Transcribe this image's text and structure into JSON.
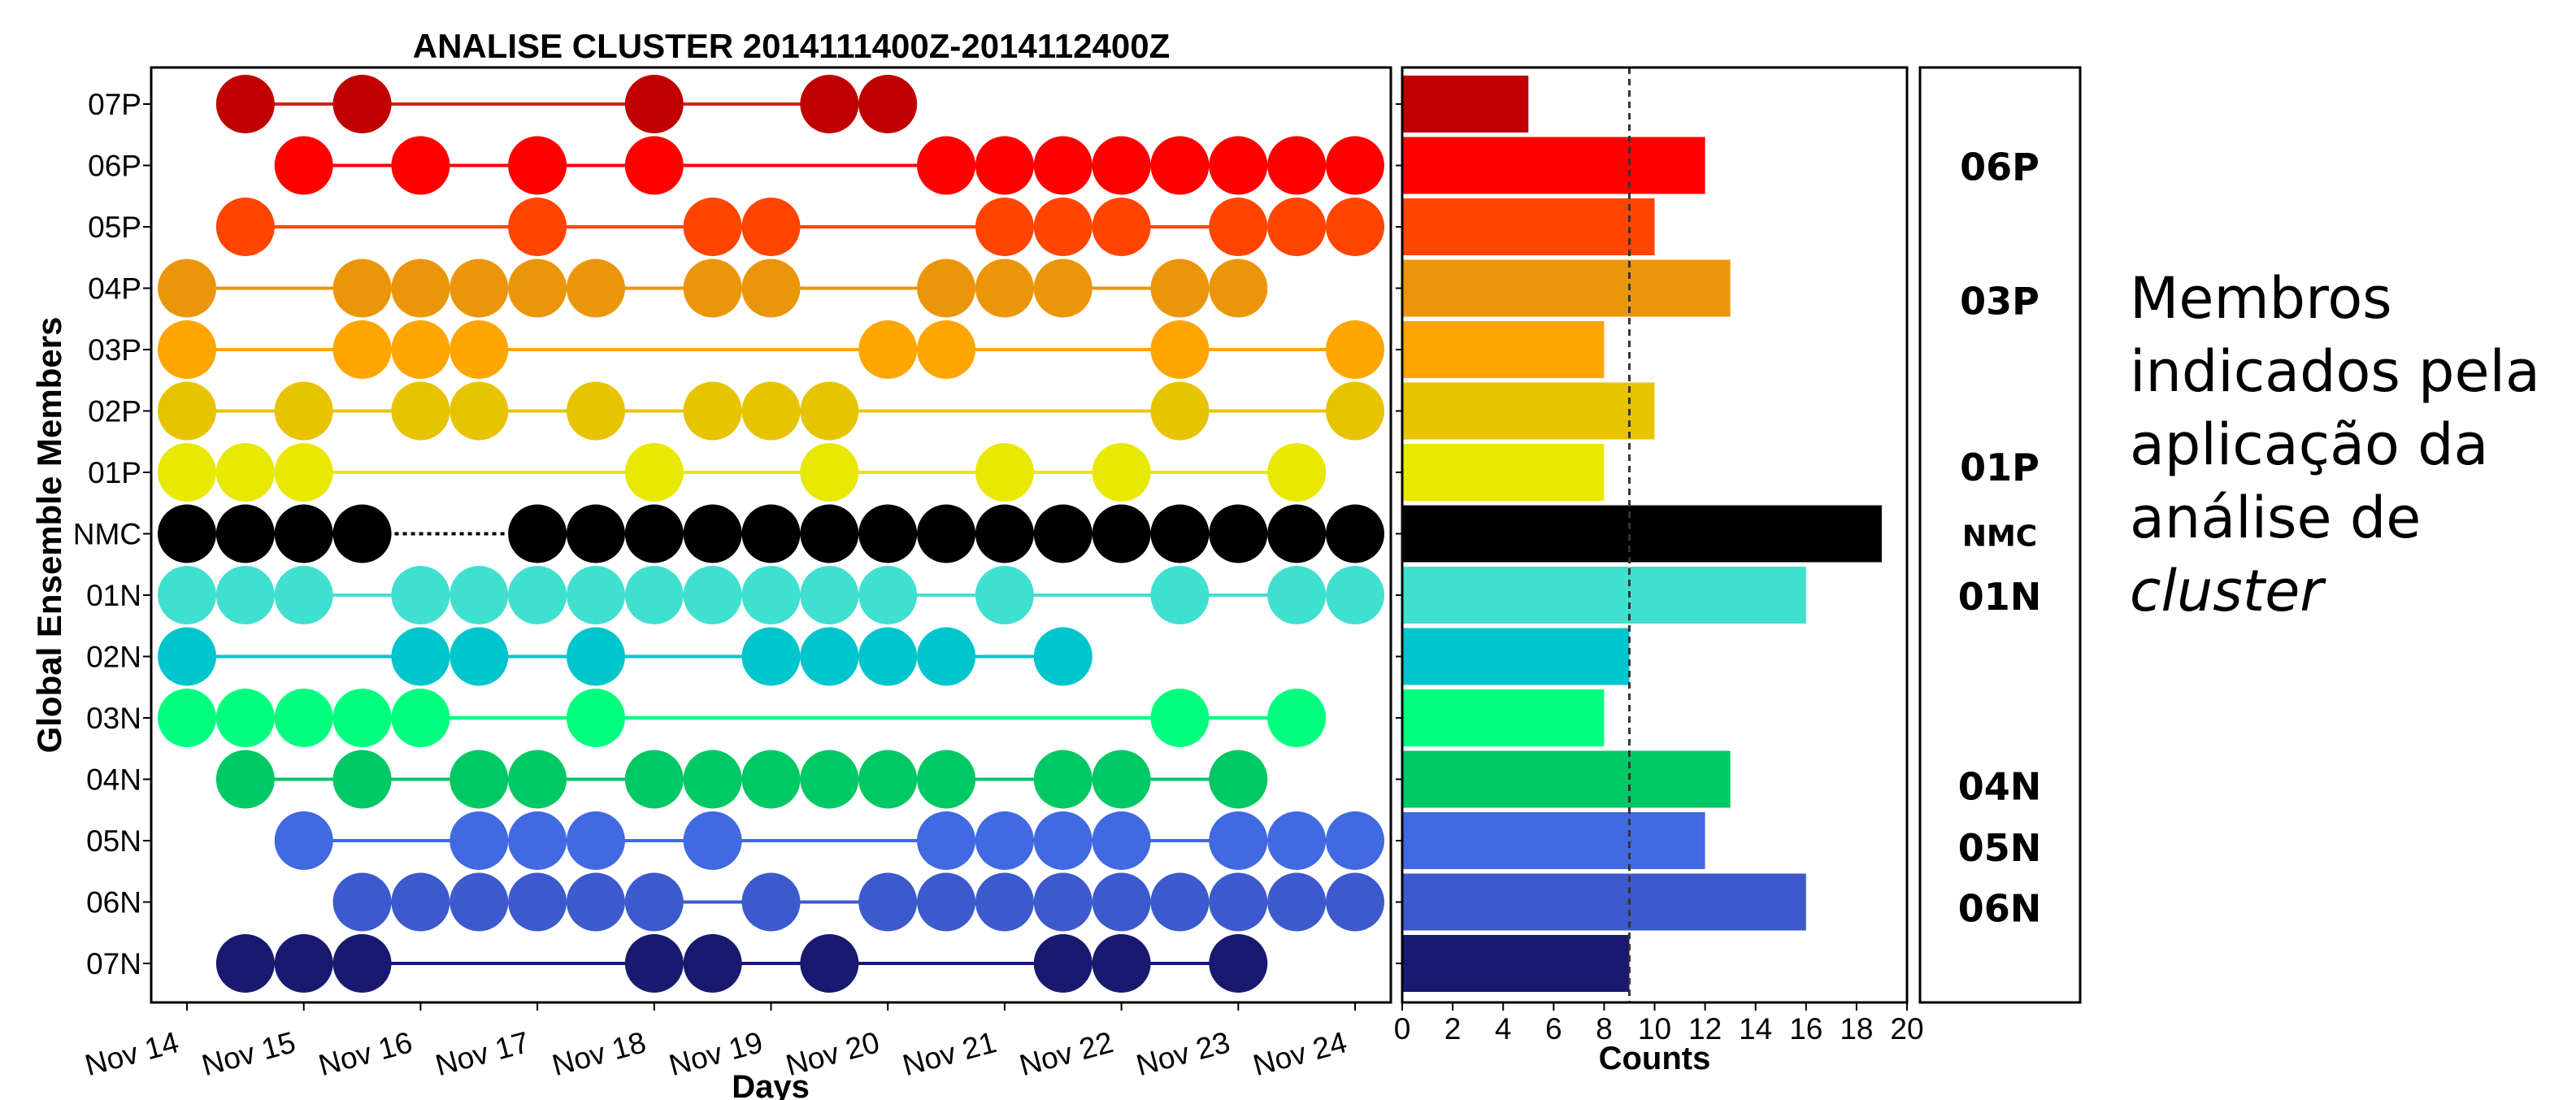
{
  "chart_data": [
    {
      "type": "scatter",
      "title": "ANALISE CLUSTER 2014111400Z-2014112400Z",
      "xlabel": "Days",
      "ylabel": "Global Ensemble Members",
      "x_ticks": [
        "Nov 14",
        "Nov 15",
        "Nov 16",
        "Nov 17",
        "Nov 18",
        "Nov 19",
        "Nov 20",
        "Nov 21",
        "Nov 22",
        "Nov 23",
        "Nov 24"
      ],
      "time_step_days": 0.5,
      "members": [
        {
          "name": "07P",
          "color": "#c00000",
          "line": "#d22020",
          "dots": [
            1,
            3,
            8,
            11,
            12
          ]
        },
        {
          "name": "06P",
          "color": "#ff0000",
          "line": "#ff0000",
          "dots": [
            2,
            4,
            6,
            8,
            13,
            14,
            15,
            16,
            17,
            18,
            19,
            20
          ]
        },
        {
          "name": "05P",
          "color": "#ff4500",
          "line": "#ff4500",
          "dots": [
            1,
            6,
            9,
            10,
            14,
            15,
            16,
            18,
            19,
            20
          ]
        },
        {
          "name": "04P",
          "color": "#eb960a",
          "line": "#eb960a",
          "dots": [
            0,
            3,
            4,
            5,
            6,
            7,
            9,
            10,
            13,
            14,
            15,
            17,
            18
          ]
        },
        {
          "name": "03P",
          "color": "#ffa500",
          "line": "#ffa500",
          "dots": [
            0,
            3,
            4,
            5,
            12,
            13,
            17,
            20
          ]
        },
        {
          "name": "02P",
          "color": "#e8c400",
          "line": "#e8c400",
          "dots": [
            0,
            2,
            4,
            5,
            7,
            9,
            10,
            11,
            17,
            20
          ]
        },
        {
          "name": "01P",
          "color": "#e8e800",
          "line": "#e8e800",
          "dots": [
            0,
            1,
            2,
            8,
            11,
            14,
            16,
            19
          ]
        },
        {
          "name": "NMC",
          "color": "#000000",
          "line": "#000000",
          "dots": [
            0,
            1,
            2,
            3,
            6,
            7,
            8,
            9,
            10,
            11,
            12,
            13,
            14,
            15,
            16,
            17,
            18,
            19,
            20
          ],
          "dotted_gap": [
            3,
            6
          ]
        },
        {
          "name": "01N",
          "color": "#40e0d0",
          "line": "#40e0d0",
          "dots": [
            0,
            1,
            2,
            4,
            5,
            6,
            7,
            8,
            9,
            10,
            11,
            12,
            14,
            17,
            19,
            20
          ]
        },
        {
          "name": "02N",
          "color": "#00c5cd",
          "line": "#00c5cd",
          "dots": [
            0,
            4,
            5,
            7,
            10,
            11,
            12,
            13,
            15
          ]
        },
        {
          "name": "03N",
          "color": "#00ff7f",
          "line": "#00ff7f",
          "dots": [
            0,
            1,
            2,
            3,
            4,
            7,
            17,
            19
          ]
        },
        {
          "name": "04N",
          "color": "#00c864",
          "line": "#00c864",
          "dots": [
            1,
            3,
            5,
            6,
            8,
            9,
            10,
            11,
            12,
            13,
            15,
            16,
            18
          ]
        },
        {
          "name": "05N",
          "color": "#4169e1",
          "line": "#4169e1",
          "dots": [
            2,
            5,
            6,
            7,
            9,
            13,
            14,
            15,
            16,
            18,
            19,
            20
          ]
        },
        {
          "name": "06N",
          "color": "#3c5acd",
          "line": "#3c5acd",
          "dots": [
            3,
            4,
            5,
            6,
            7,
            8,
            10,
            12,
            13,
            14,
            15,
            16,
            17,
            18,
            19,
            20
          ]
        },
        {
          "name": "07N",
          "color": "#191970",
          "line": "#191970",
          "dots": [
            1,
            2,
            3,
            8,
            9,
            11,
            15,
            16,
            18
          ]
        }
      ]
    },
    {
      "type": "bar",
      "orientation": "horizontal",
      "xlabel": "Counts",
      "x_ticks": [
        0,
        2,
        4,
        6,
        8,
        10,
        12,
        14,
        16,
        18,
        20
      ],
      "xlim": [
        0,
        20
      ],
      "threshold": 9,
      "categories": [
        "07P",
        "06P",
        "05P",
        "04P",
        "03P",
        "02P",
        "01P",
        "NMC",
        "01N",
        "02N",
        "03N",
        "04N",
        "05N",
        "06N",
        "07N"
      ],
      "values": [
        5,
        12,
        10,
        13,
        8,
        10,
        8,
        19,
        16,
        9,
        8,
        13,
        12,
        16,
        9
      ]
    }
  ],
  "selected_panel": {
    "labels": [
      {
        "text": "06P",
        "row": "06P"
      },
      {
        "text": "03P",
        "row": "04P"
      },
      {
        "text": "01P",
        "row": "01P+"
      },
      {
        "text": "NMC",
        "row": "NMC"
      },
      {
        "text": "01N",
        "row": "01N"
      },
      {
        "text": "04N",
        "row": "04N"
      },
      {
        "text": "05N",
        "row": "05N"
      },
      {
        "text": "06N",
        "row": "06N"
      }
    ]
  },
  "annotation": {
    "line1": "Membros",
    "line2": "indicados pela",
    "line3": "aplicação da",
    "line4": "análise de",
    "line5": "cluster"
  }
}
